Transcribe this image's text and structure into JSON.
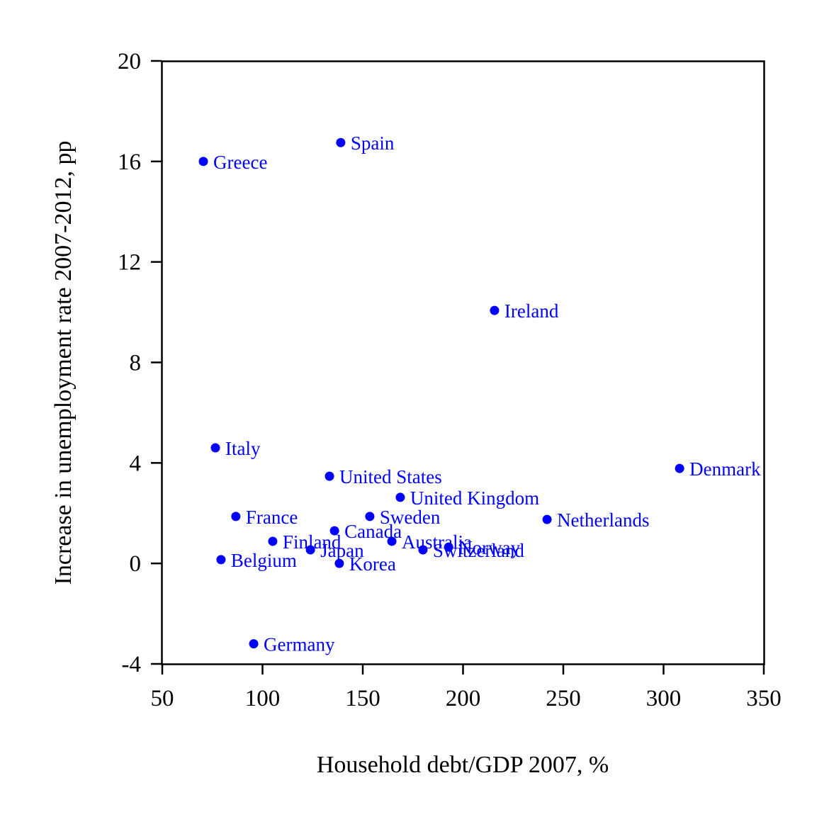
{
  "chart_data": {
    "type": "scatter",
    "title": "",
    "xlabel": "Household debt/GDP 2007, %",
    "ylabel": "Increase in unemployment rate 2007-2012, pp",
    "xlim": [
      50,
      350
    ],
    "ylim": [
      -4,
      20
    ],
    "xticks": [
      50,
      100,
      150,
      200,
      250,
      300,
      350
    ],
    "yticks": [
      -4,
      0,
      4,
      8,
      12,
      16,
      20
    ],
    "xtick_labels": [
      "50",
      "100",
      "150",
      "200",
      "250",
      "300",
      "350"
    ],
    "ytick_labels": [
      "-4",
      "0",
      "4",
      "8",
      "12",
      "16",
      "20"
    ],
    "grid": false,
    "legend": "none",
    "point_color": "#0000ff",
    "axis_color": "#000000",
    "points": [
      {
        "label": "Greece",
        "x": 70.5,
        "y": 16.0
      },
      {
        "label": "Spain",
        "x": 139.0,
        "y": 16.75
      },
      {
        "label": "Ireland",
        "x": 215.7,
        "y": 10.07
      },
      {
        "label": "Italy",
        "x": 76.5,
        "y": 4.6
      },
      {
        "label": "Denmark",
        "x": 308.0,
        "y": 3.78
      },
      {
        "label": "United States",
        "x": 133.4,
        "y": 3.47
      },
      {
        "label": "United Kingdom",
        "x": 168.7,
        "y": 2.63
      },
      {
        "label": "France",
        "x": 86.7,
        "y": 1.87
      },
      {
        "label": "Sweden",
        "x": 153.5,
        "y": 1.87
      },
      {
        "label": "Netherlands",
        "x": 241.9,
        "y": 1.75
      },
      {
        "label": "Canada",
        "x": 135.9,
        "y": 1.3
      },
      {
        "label": "Finland",
        "x": 105.1,
        "y": 0.88
      },
      {
        "label": "Australia",
        "x": 164.5,
        "y": 0.88
      },
      {
        "label": "Japan",
        "x": 123.9,
        "y": 0.54
      },
      {
        "label": "Switzerland",
        "x": 180.0,
        "y": 0.54
      },
      {
        "label": "Norway",
        "x": 192.8,
        "y": 0.65
      },
      {
        "label": "Belgium",
        "x": 79.3,
        "y": 0.15
      },
      {
        "label": "Korea",
        "x": 138.3,
        "y": 0.0
      },
      {
        "label": "Germany",
        "x": 95.6,
        "y": -3.2
      }
    ]
  }
}
